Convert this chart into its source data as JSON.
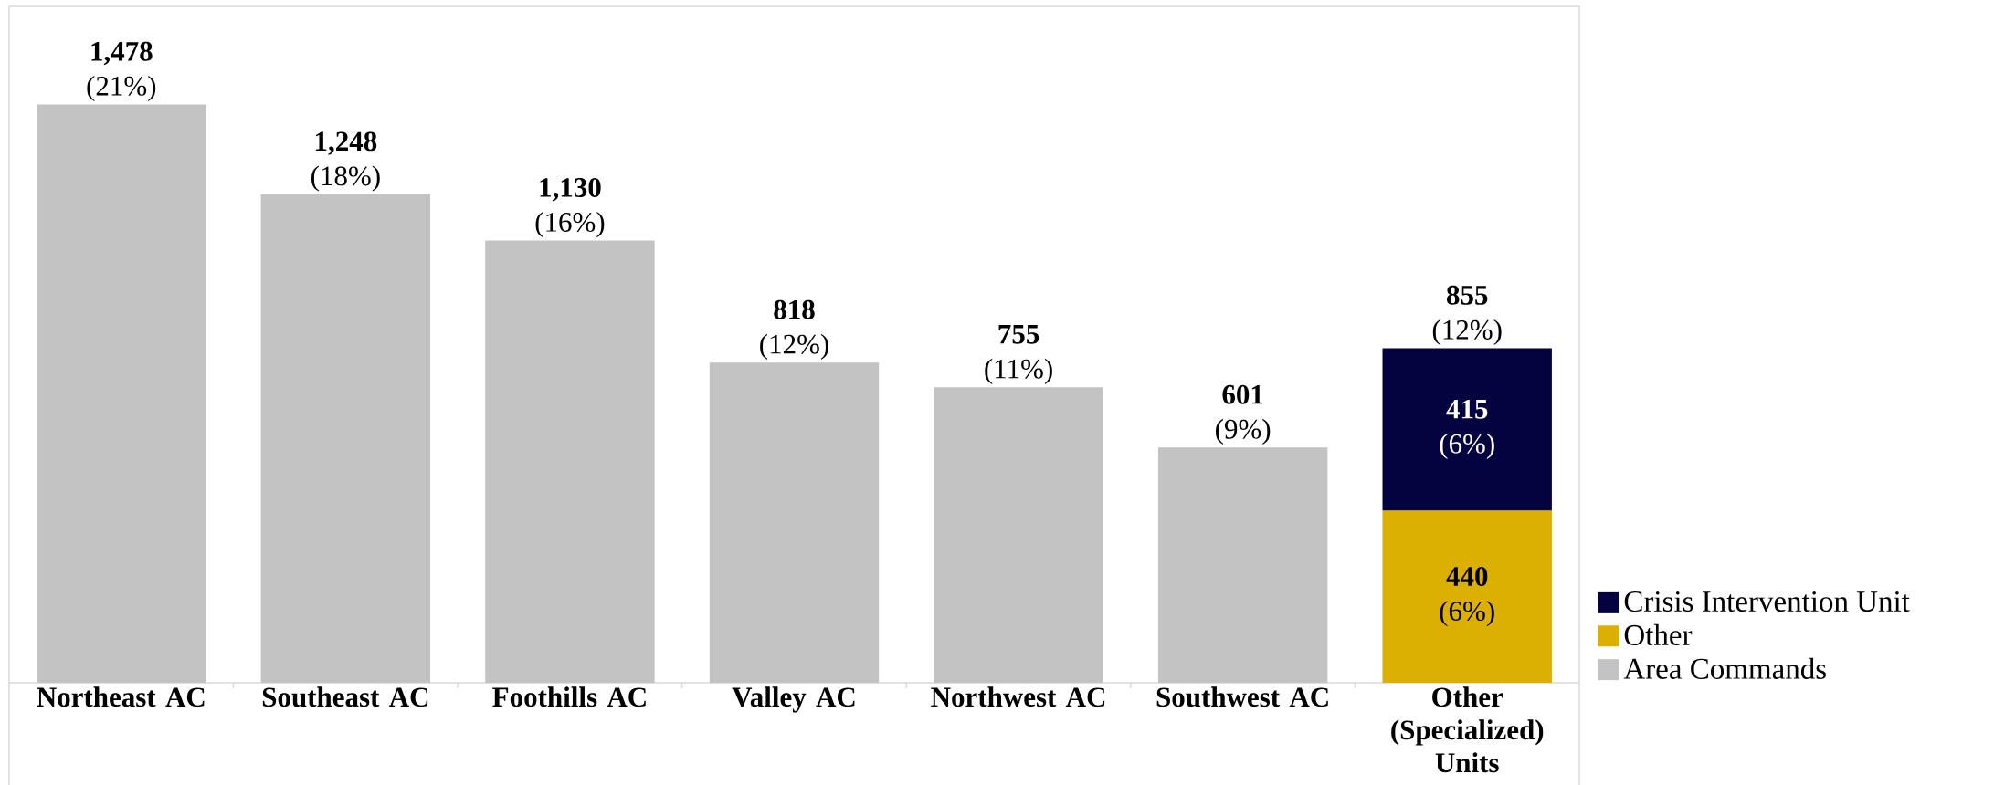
{
  "chart_data": {
    "type": "bar",
    "stacked": true,
    "categories": [
      "Northeast AC",
      "Southeast AC",
      "Foothills AC",
      "Valley AC",
      "Northwest AC",
      "Southwest AC",
      "Other (Specialized) Units"
    ],
    "series": [
      {
        "name": "Area Commands",
        "color": "#c3c3c3",
        "values": [
          1478,
          1248,
          1130,
          818,
          755,
          601,
          null
        ],
        "value_labels": [
          "**1,478** (21%)",
          "**1,248** (18%)",
          "**1,130** (16%)",
          "**818** (12%)",
          "**755** (11%)",
          "**601** (9%)",
          null
        ]
      },
      {
        "name": "Other",
        "color": "#dcb000",
        "values": [
          null,
          null,
          null,
          null,
          null,
          null,
          440
        ],
        "value_labels": [
          null,
          null,
          null,
          null,
          null,
          null,
          "**440** (6%)"
        ]
      },
      {
        "name": "Crisis Intervention Unit",
        "color": "#05033f",
        "values": [
          null,
          null,
          null,
          null,
          null,
          null,
          415
        ],
        "value_labels": [
          null,
          null,
          null,
          null,
          null,
          null,
          "**415** (6%)"
        ]
      }
    ],
    "totals": [
      null,
      null,
      null,
      null,
      null,
      null,
      "**855** (12%)"
    ],
    "legend": "bottom right"
  }
}
